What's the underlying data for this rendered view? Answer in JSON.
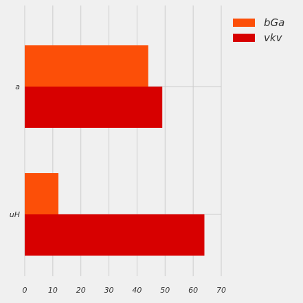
{
  "chart_data": {
    "type": "bar",
    "orientation": "horizontal",
    "categories": [
      "a",
      "uH"
    ],
    "series": [
      {
        "name": "bGa",
        "color": "#fc4f08",
        "values": [
          44,
          12
        ]
      },
      {
        "name": "vkv",
        "color": "#d70000",
        "values": [
          49,
          64
        ]
      }
    ],
    "title": "",
    "xlabel": "",
    "ylabel": "",
    "xlim": [
      0,
      70
    ],
    "xticks": [
      0,
      10,
      20,
      30,
      40,
      50,
      60,
      70
    ],
    "grid": true,
    "legend_position": "top-right",
    "background": "#f0f0f0",
    "grid_color": "#cbcbcb"
  }
}
